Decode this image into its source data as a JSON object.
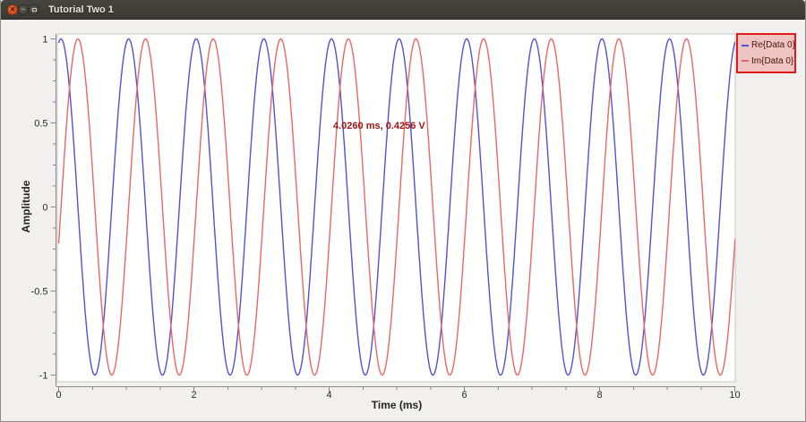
{
  "window": {
    "title": "Tutorial Two 1"
  },
  "chart_data": {
    "type": "line",
    "title": "",
    "xlabel": "Time (ms)",
    "ylabel": "Amplitude",
    "xlim": [
      0,
      10
    ],
    "ylim": [
      -1,
      1
    ],
    "grid": false,
    "x_major_ticks": [
      0,
      2,
      4,
      6,
      8,
      10
    ],
    "x_major_tick_labels": [
      "0",
      "2",
      "4",
      "6",
      "8",
      "10"
    ],
    "x_minor_step": 0.5,
    "y_major_ticks": [
      1,
      0.5,
      0,
      -0.5,
      -1
    ],
    "y_major_tick_labels": [
      "1",
      "0.5",
      "0",
      "-0.5",
      "-1"
    ],
    "y_minor_step": 0.125,
    "legend_position": "top-right",
    "legend_highlighted": true,
    "tracker_text": "4.0260 ms, 0.4256 V",
    "tracker_point": {
      "x_ms": 4.026,
      "y_v": 0.4256
    },
    "series": [
      {
        "name": "Re{Data 0}",
        "waveform": "cosine",
        "frequency_khz": 1,
        "amplitude": 1,
        "phase_ms": 0.035,
        "color": "#5252d4"
      },
      {
        "name": "Im{Data 0}",
        "waveform": "sine",
        "frequency_khz": 1,
        "amplitude": 1,
        "phase_ms": 0.035,
        "color": "#ee6565"
      }
    ]
  },
  "colors": {
    "canvas": "#ffffff",
    "window_background": "#f2f0ee",
    "axis_line": "#8a8a8a",
    "tick_label": "#2b2b2b",
    "legend_border": "#e11a1a",
    "tracker_text": "#a21518"
  }
}
